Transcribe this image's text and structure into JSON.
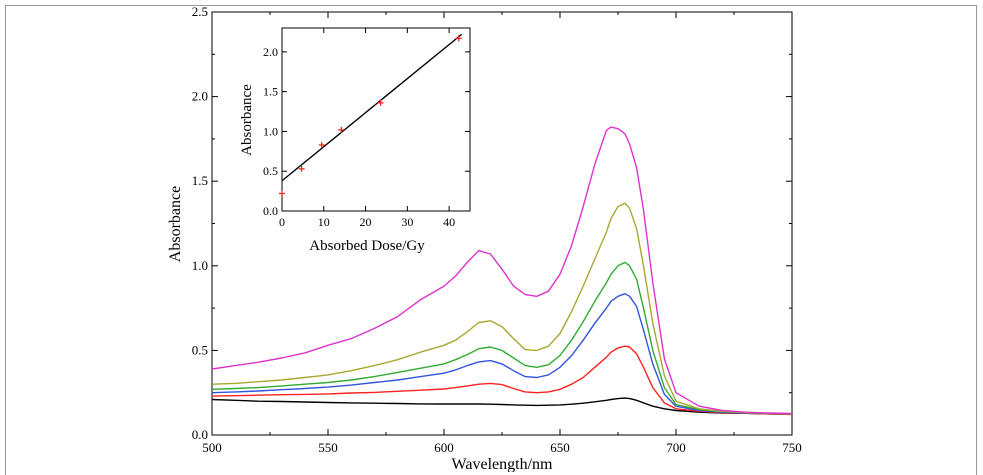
{
  "chart_data": [
    {
      "type": "line",
      "title": "",
      "xlabel": "Wavelength/nm",
      "ylabel": "Absorbance",
      "xlim": [
        500,
        750
      ],
      "ylim": [
        0.0,
        2.5
      ],
      "xticks": [
        "500",
        "550",
        "600",
        "650",
        "700",
        "750"
      ],
      "yticks": [
        "0.0",
        "0.5",
        "1.0",
        "1.5",
        "2.0",
        "2.5"
      ],
      "grid": false,
      "x": [
        500,
        510,
        520,
        530,
        540,
        550,
        560,
        570,
        580,
        590,
        600,
        605,
        610,
        615,
        620,
        625,
        630,
        635,
        640,
        645,
        650,
        655,
        660,
        665,
        670,
        672,
        675,
        678,
        680,
        683,
        686,
        690,
        695,
        700,
        710,
        720,
        730,
        740,
        750
      ],
      "series": [
        {
          "color": "#000000",
          "values": [
            0.21,
            0.205,
            0.2,
            0.198,
            0.195,
            0.192,
            0.19,
            0.188,
            0.186,
            0.184,
            0.183,
            0.183,
            0.183,
            0.183,
            0.182,
            0.18,
            0.178,
            0.176,
            0.175,
            0.176,
            0.178,
            0.182,
            0.188,
            0.196,
            0.205,
            0.21,
            0.215,
            0.218,
            0.215,
            0.205,
            0.19,
            0.17,
            0.155,
            0.145,
            0.135,
            0.13,
            0.128,
            0.125,
            0.122
          ]
        },
        {
          "color": "#ff2222",
          "values": [
            0.23,
            0.232,
            0.235,
            0.238,
            0.24,
            0.243,
            0.248,
            0.252,
            0.258,
            0.265,
            0.272,
            0.28,
            0.29,
            0.3,
            0.305,
            0.298,
            0.275,
            0.255,
            0.25,
            0.255,
            0.27,
            0.3,
            0.34,
            0.4,
            0.46,
            0.49,
            0.515,
            0.525,
            0.52,
            0.48,
            0.4,
            0.28,
            0.19,
            0.155,
            0.14,
            0.132,
            0.128,
            0.125,
            0.122
          ]
        },
        {
          "color": "#3355dd",
          "values": [
            0.25,
            0.255,
            0.26,
            0.268,
            0.275,
            0.283,
            0.295,
            0.31,
            0.325,
            0.345,
            0.365,
            0.385,
            0.41,
            0.432,
            0.44,
            0.42,
            0.38,
            0.345,
            0.34,
            0.355,
            0.4,
            0.47,
            0.56,
            0.66,
            0.75,
            0.79,
            0.82,
            0.835,
            0.82,
            0.76,
            0.62,
            0.42,
            0.24,
            0.17,
            0.145,
            0.135,
            0.13,
            0.127,
            0.124
          ]
        },
        {
          "color": "#33aa33",
          "values": [
            0.27,
            0.275,
            0.28,
            0.29,
            0.3,
            0.31,
            0.325,
            0.345,
            0.37,
            0.395,
            0.42,
            0.445,
            0.475,
            0.51,
            0.52,
            0.5,
            0.455,
            0.41,
            0.4,
            0.415,
            0.47,
            0.56,
            0.67,
            0.79,
            0.9,
            0.95,
            1.0,
            1.02,
            1.0,
            0.92,
            0.75,
            0.5,
            0.28,
            0.18,
            0.15,
            0.138,
            0.132,
            0.128,
            0.125
          ]
        },
        {
          "color": "#a8a830",
          "values": [
            0.3,
            0.305,
            0.315,
            0.325,
            0.34,
            0.355,
            0.38,
            0.41,
            0.445,
            0.49,
            0.53,
            0.56,
            0.61,
            0.665,
            0.675,
            0.64,
            0.57,
            0.505,
            0.5,
            0.525,
            0.6,
            0.73,
            0.88,
            1.04,
            1.2,
            1.28,
            1.35,
            1.37,
            1.34,
            1.22,
            1.0,
            0.66,
            0.35,
            0.2,
            0.155,
            0.14,
            0.133,
            0.128,
            0.125
          ]
        },
        {
          "color": "#dd33cc",
          "values": [
            0.39,
            0.41,
            0.43,
            0.455,
            0.485,
            0.53,
            0.57,
            0.63,
            0.7,
            0.8,
            0.88,
            0.94,
            1.02,
            1.09,
            1.07,
            0.98,
            0.88,
            0.83,
            0.82,
            0.85,
            0.95,
            1.12,
            1.35,
            1.6,
            1.8,
            1.82,
            1.81,
            1.78,
            1.72,
            1.58,
            1.33,
            0.9,
            0.45,
            0.25,
            0.17,
            0.145,
            0.135,
            0.13,
            0.127
          ]
        }
      ]
    },
    {
      "type": "scatter",
      "title": "",
      "xlabel": "Absorbed Dose/Gy",
      "ylabel": "Absorbance",
      "xlim": [
        0,
        45
      ],
      "ylim": [
        0.0,
        2.3
      ],
      "xticks": [
        "0",
        "10",
        "20",
        "30",
        "40"
      ],
      "yticks": [
        "0.0",
        "0.5",
        "1.0",
        "1.5",
        "2.0"
      ],
      "points_color": "#ff2222",
      "x": [
        0,
        4.7,
        9.5,
        14.2,
        23.6,
        42.3
      ],
      "y": [
        0.22,
        0.53,
        0.83,
        1.02,
        1.36,
        2.17
      ],
      "fit": {
        "color": "#000000",
        "x": [
          0,
          43
        ],
        "y": [
          0.38,
          2.22
        ]
      }
    }
  ]
}
